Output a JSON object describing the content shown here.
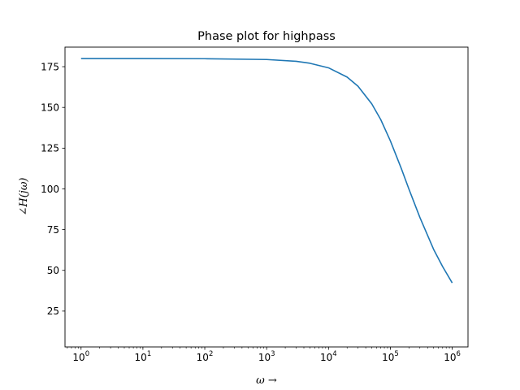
{
  "chart_data": {
    "type": "line",
    "title": "Phase plot for highpass",
    "xlabel": "ω →",
    "ylabel": "∠H(jω)",
    "x_scale": "log",
    "xlim": [
      0.55,
      1800000
    ],
    "ylim": [
      3,
      187
    ],
    "grid": false,
    "x_ticks": [
      {
        "value": 1,
        "label": "10^0"
      },
      {
        "value": 10,
        "label": "10^1"
      },
      {
        "value": 100,
        "label": "10^2"
      },
      {
        "value": 1000,
        "label": "10^3"
      },
      {
        "value": 10000,
        "label": "10^4"
      },
      {
        "value": 100000,
        "label": "10^5"
      },
      {
        "value": 1000000,
        "label": "10^6"
      }
    ],
    "y_ticks": [
      25,
      50,
      75,
      100,
      125,
      150,
      175
    ],
    "colors": {
      "series": "#1f77b4"
    },
    "series": [
      {
        "x": [
          1,
          10,
          100,
          1000,
          3000,
          5000,
          10000,
          20000,
          30000,
          50000,
          70000,
          100000,
          150000,
          200000,
          300000,
          500000,
          700000,
          1000000
        ],
        "values": [
          180,
          180,
          179.9,
          179.4,
          178.3,
          177.1,
          174.3,
          168.6,
          163.0,
          152.2,
          142.5,
          129.5,
          112.6,
          99.8,
          82.5,
          62.9,
          52.3,
          42.3
        ]
      }
    ]
  }
}
